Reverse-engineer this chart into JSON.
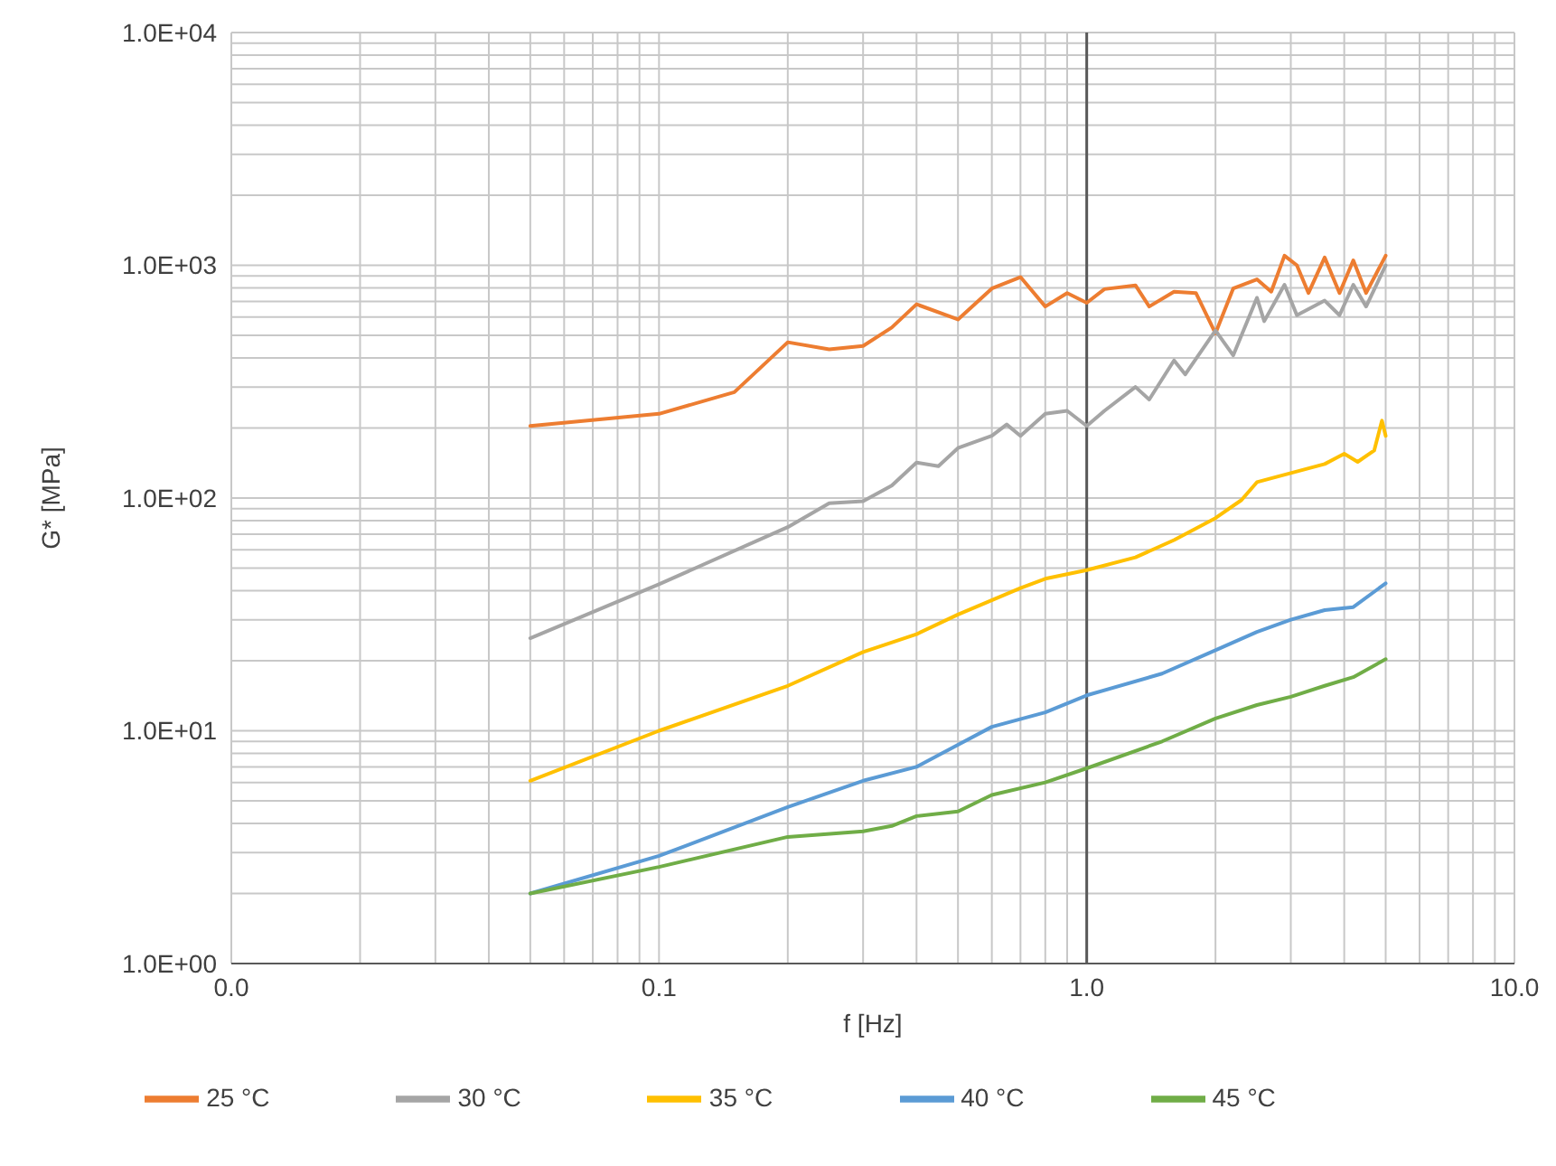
{
  "chart_data": {
    "type": "line",
    "xlabel": "f [Hz]",
    "ylabel": "G* [MPa]",
    "log": "xy",
    "grid": true,
    "legend": "bottom",
    "marker": "none",
    "line_style": "solid",
    "xlim": [
      0.01,
      10
    ],
    "ylim": [
      1,
      10000
    ],
    "xticks": [
      {
        "value": 0.01,
        "label": "0.0"
      },
      {
        "value": 0.02,
        "label": null
      },
      {
        "value": 0.03,
        "label": null
      },
      {
        "value": 0.04,
        "label": null
      },
      {
        "value": 0.05,
        "label": null
      },
      {
        "value": 0.06,
        "label": null
      },
      {
        "value": 0.07,
        "label": null
      },
      {
        "value": 0.08,
        "label": null
      },
      {
        "value": 0.09,
        "label": null
      },
      {
        "value": 0.1,
        "label": "0.1"
      },
      {
        "value": 0.2,
        "label": null
      },
      {
        "value": 0.3,
        "label": null
      },
      {
        "value": 0.4,
        "label": null
      },
      {
        "value": 0.5,
        "label": null
      },
      {
        "value": 0.6,
        "label": null
      },
      {
        "value": 0.7,
        "label": null
      },
      {
        "value": 0.8,
        "label": null
      },
      {
        "value": 0.9,
        "label": null
      },
      {
        "value": 1,
        "label": "1.0"
      },
      {
        "value": 2,
        "label": null
      },
      {
        "value": 3,
        "label": null
      },
      {
        "value": 4,
        "label": null
      },
      {
        "value": 5,
        "label": null
      },
      {
        "value": 6,
        "label": null
      },
      {
        "value": 7,
        "label": null
      },
      {
        "value": 8,
        "label": null
      },
      {
        "value": 9,
        "label": null
      },
      {
        "value": 10,
        "label": "10.0"
      }
    ],
    "yticks": [
      {
        "value": 1,
        "label": "1.0E+00"
      },
      {
        "value": 2,
        "label": null
      },
      {
        "value": 3,
        "label": null
      },
      {
        "value": 4,
        "label": null
      },
      {
        "value": 5,
        "label": null
      },
      {
        "value": 6,
        "label": null
      },
      {
        "value": 7,
        "label": null
      },
      {
        "value": 8,
        "label": null
      },
      {
        "value": 9,
        "label": null
      },
      {
        "value": 10,
        "label": "1.0E+01"
      },
      {
        "value": 20,
        "label": null
      },
      {
        "value": 30,
        "label": null
      },
      {
        "value": 40,
        "label": null
      },
      {
        "value": 50,
        "label": null
      },
      {
        "value": 60,
        "label": null
      },
      {
        "value": 70,
        "label": null
      },
      {
        "value": 80,
        "label": null
      },
      {
        "value": 90,
        "label": null
      },
      {
        "value": 100,
        "label": "1.0E+02"
      },
      {
        "value": 200,
        "label": null
      },
      {
        "value": 300,
        "label": null
      },
      {
        "value": 400,
        "label": null
      },
      {
        "value": 500,
        "label": null
      },
      {
        "value": 600,
        "label": null
      },
      {
        "value": 700,
        "label": null
      },
      {
        "value": 800,
        "label": null
      },
      {
        "value": 900,
        "label": null
      },
      {
        "value": 1000,
        "label": "1.0E+03"
      },
      {
        "value": 2000,
        "label": null
      },
      {
        "value": 3000,
        "label": null
      },
      {
        "value": 4000,
        "label": null
      },
      {
        "value": 5000,
        "label": null
      },
      {
        "value": 6000,
        "label": null
      },
      {
        "value": 7000,
        "label": null
      },
      {
        "value": 8000,
        "label": null
      },
      {
        "value": 9000,
        "label": null
      },
      {
        "value": 10000,
        "label": "1.0E+04"
      }
    ],
    "ref_lines": [
      {
        "axis": "x",
        "value": 1,
        "color": "#595959"
      }
    ],
    "series": [
      {
        "name": "25 °C",
        "color": "#ed7d31",
        "x": [
          0.05,
          0.1,
          0.15,
          0.2,
          0.25,
          0.3,
          0.35,
          0.4,
          0.5,
          0.6,
          0.7,
          0.8,
          0.9,
          1.0,
          1.1,
          1.3,
          1.4,
          1.6,
          1.8,
          2.0,
          2.2,
          2.5,
          2.7,
          2.9,
          3.1,
          3.3,
          3.6,
          3.9,
          4.2,
          4.5,
          5.0
        ],
        "values": [
          204,
          230,
          285,
          467,
          435,
          450,
          540,
          680,
          585,
          795,
          890,
          665,
          760,
          690,
          790,
          820,
          665,
          770,
          760,
          510,
          795,
          870,
          770,
          1100,
          1000,
          760,
          1080,
          760,
          1050,
          760,
          1100
        ]
      },
      {
        "name": "30 °C",
        "color": "#a5a5a5",
        "x": [
          0.05,
          0.1,
          0.2,
          0.25,
          0.3,
          0.35,
          0.4,
          0.45,
          0.5,
          0.6,
          0.65,
          0.7,
          0.8,
          0.9,
          1.0,
          1.1,
          1.3,
          1.4,
          1.6,
          1.7,
          2.0,
          2.2,
          2.5,
          2.6,
          2.9,
          3.1,
          3.6,
          3.9,
          4.2,
          4.5,
          5.0
        ],
        "values": [
          25,
          42.6,
          75,
          95,
          97,
          113,
          142,
          137,
          164,
          185,
          207,
          185,
          230,
          237,
          204,
          237,
          300,
          265,
          390,
          340,
          525,
          410,
          725,
          575,
          825,
          610,
          705,
          610,
          825,
          665,
          1000
        ]
      },
      {
        "name": "35 °C",
        "color": "#ffc000",
        "x": [
          0.05,
          0.1,
          0.2,
          0.3,
          0.4,
          0.5,
          0.7,
          0.8,
          1.0,
          1.3,
          1.6,
          2.0,
          2.3,
          2.5,
          3.0,
          3.6,
          4.0,
          4.3,
          4.7,
          4.9,
          5.0
        ],
        "values": [
          6.1,
          10,
          15.6,
          21.8,
          26,
          31.6,
          41,
          45,
          49,
          55.6,
          66,
          82,
          98,
          117,
          128,
          140,
          155,
          143,
          160,
          215,
          185
        ]
      },
      {
        "name": "40 °C",
        "color": "#5b9bd5",
        "x": [
          0.05,
          0.1,
          0.2,
          0.3,
          0.4,
          0.5,
          0.6,
          0.8,
          1.0,
          1.5,
          2.0,
          2.5,
          3.0,
          3.6,
          4.2,
          5.0
        ],
        "values": [
          2.0,
          2.9,
          4.7,
          6.1,
          7.0,
          8.7,
          10.4,
          12,
          14.2,
          17.6,
          22.2,
          26.6,
          30,
          33,
          34,
          43
        ]
      },
      {
        "name": "45 °C",
        "color": "#70ad47",
        "x": [
          0.05,
          0.1,
          0.2,
          0.3,
          0.35,
          0.4,
          0.5,
          0.6,
          0.8,
          1.0,
          1.5,
          2.0,
          2.5,
          3.0,
          3.6,
          4.2,
          5.0
        ],
        "values": [
          2.0,
          2.6,
          3.5,
          3.7,
          3.9,
          4.3,
          4.5,
          5.3,
          6.0,
          6.9,
          9.0,
          11.3,
          12.9,
          14,
          15.6,
          17,
          20.3
        ]
      }
    ]
  }
}
